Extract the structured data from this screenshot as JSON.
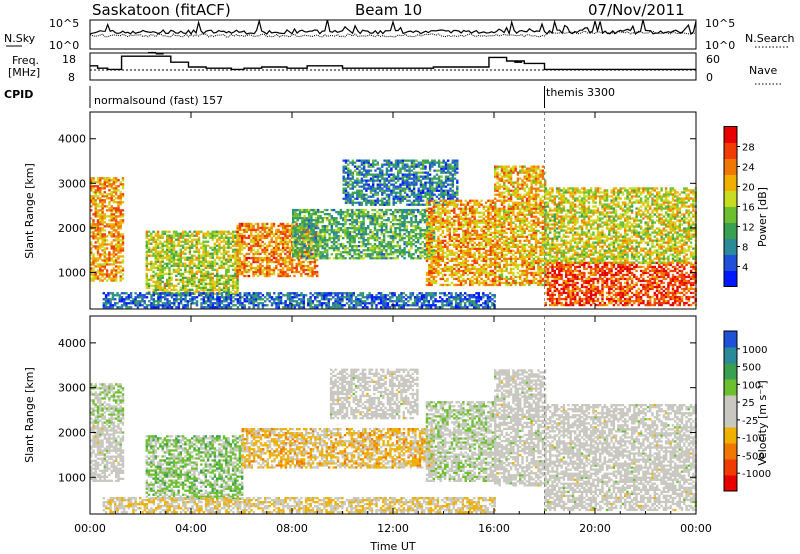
{
  "header": {
    "station": "Saskatoon (fitACF)",
    "beam": "Beam 10",
    "date": "07/Nov/2011"
  },
  "noise_panel": {
    "left_label": "N.Sky",
    "right_label": "N.Search",
    "left_ticks": [
      "10^5",
      "10^0"
    ],
    "right_ticks": [
      "10^5",
      "10^0"
    ]
  },
  "freq_panel": {
    "left_label_top": "Freq.",
    "left_label_bottom": "[MHz]",
    "right_label": "Nave",
    "left_ticks": [
      18,
      8
    ],
    "right_ticks": [
      60,
      0
    ],
    "freq_steps": [
      {
        "t": 0.0,
        "v": 13.5
      },
      {
        "t": 0.3,
        "v": 12.5
      },
      {
        "t": 0.7,
        "v": 12.0
      },
      {
        "t": 1.25,
        "v": 17.5
      },
      {
        "t": 3.2,
        "v": 15.0
      },
      {
        "t": 3.9,
        "v": 13.0
      },
      {
        "t": 4.6,
        "v": 12.5
      },
      {
        "t": 5.6,
        "v": 12.0
      },
      {
        "t": 6.1,
        "v": 12.5
      },
      {
        "t": 6.8,
        "v": 13.0
      },
      {
        "t": 7.8,
        "v": 12.5
      },
      {
        "t": 8.6,
        "v": 13.5
      },
      {
        "t": 10.0,
        "v": 12.5
      },
      {
        "t": 12.0,
        "v": 12.5
      },
      {
        "t": 13.6,
        "v": 13.0
      },
      {
        "t": 15.8,
        "v": 17.0
      },
      {
        "t": 16.5,
        "v": 15.5
      },
      {
        "t": 17.2,
        "v": 14.5
      },
      {
        "t": 18.0,
        "v": 12.0
      },
      {
        "t": 24.0,
        "v": 12.0
      }
    ],
    "freq_spikes": [
      {
        "t": 2.3,
        "v": 19.0
      },
      {
        "t": 2.6,
        "v": 18.5
      },
      {
        "t": 16.8,
        "v": 15.0
      }
    ],
    "nave_level": 30
  },
  "cpid": {
    "label": "CPID",
    "segments": [
      {
        "start": 0,
        "end": 18,
        "text": "normalsound (fast) 157"
      },
      {
        "start": 18,
        "end": 24,
        "text": "themis 3300"
      }
    ]
  },
  "chart_data": [
    {
      "type": "heatmap",
      "name": "power",
      "ylabel": "Slant Range [km]",
      "xlabel": "",
      "x_range_hours": [
        0,
        24
      ],
      "ylim": [
        180,
        4600
      ],
      "yticks": [
        1000,
        2000,
        3000,
        4000
      ],
      "colorbar_label": "Power [dB]",
      "colorbar_ticks": [
        "28",
        "24",
        "20",
        "16",
        "12",
        "8",
        "4"
      ],
      "colorbar_min": 0,
      "colorbar_max": 32,
      "colormap": [
        "#0018ff",
        "#2050d8",
        "#2a8a9a",
        "#38a050",
        "#6cc030",
        "#c8dc20",
        "#f0b000",
        "#f07800",
        "#f03c00",
        "#e80000"
      ],
      "regions": [
        {
          "t0": 0.0,
          "t1": 1.3,
          "r0": 800,
          "r1": 3100,
          "val": 22
        },
        {
          "t0": 2.2,
          "t1": 5.8,
          "r0": 500,
          "r1": 1900,
          "val": 17
        },
        {
          "t0": 5.8,
          "t1": 9.0,
          "r0": 900,
          "r1": 2100,
          "val": 23
        },
        {
          "t0": 8.0,
          "t1": 13.6,
          "r0": 1300,
          "r1": 2400,
          "val": 12
        },
        {
          "t0": 10.0,
          "t1": 14.5,
          "r0": 2500,
          "r1": 3500,
          "val": 8
        },
        {
          "t0": 13.3,
          "t1": 16.0,
          "r0": 700,
          "r1": 2600,
          "val": 22
        },
        {
          "t0": 16.0,
          "t1": 18.0,
          "r0": 700,
          "r1": 3400,
          "val": 21
        },
        {
          "t0": 18.0,
          "t1": 24.0,
          "r0": 250,
          "r1": 1200,
          "val": 27
        },
        {
          "t0": 18.0,
          "t1": 24.0,
          "r0": 1200,
          "r1": 2900,
          "val": 18
        },
        {
          "t0": 0.5,
          "t1": 16.0,
          "r0": 200,
          "r1": 550,
          "val": 6
        }
      ]
    },
    {
      "type": "heatmap",
      "name": "velocity",
      "ylabel": "Slant Range [km]",
      "xlabel": "Time UT",
      "x_range_hours": [
        0,
        24
      ],
      "ylim": [
        180,
        4600
      ],
      "yticks": [
        1000,
        2000,
        3000,
        4000
      ],
      "xtick_labels": [
        "00:00",
        "04:00",
        "08:00",
        "12:00",
        "16:00",
        "20:00",
        "00:00"
      ],
      "colorbar_label": "Velocity [m s⁻¹]",
      "colorbar_ticks": [
        "1000",
        "500",
        "100",
        "25",
        "-25",
        "-100",
        "-500",
        "-1000"
      ],
      "colorbar_min": -1200,
      "colorbar_max": 1200,
      "colormap": [
        "#e80000",
        "#f03c00",
        "#f07800",
        "#f0b000",
        "#c8c8c0",
        "#c8c8c0",
        "#6cc030",
        "#38a050",
        "#2a8a9a",
        "#2050d8"
      ],
      "regions": [
        {
          "t0": 0.0,
          "t1": 1.3,
          "r0": 2200,
          "r1": 3100,
          "val": 200
        },
        {
          "t0": 0.0,
          "t1": 1.3,
          "r0": 900,
          "r1": 2200,
          "val": 0
        },
        {
          "t0": 2.2,
          "t1": 6.0,
          "r0": 500,
          "r1": 1900,
          "val": 300
        },
        {
          "t0": 6.0,
          "t1": 13.6,
          "r0": 1200,
          "r1": 2100,
          "val": -300
        },
        {
          "t0": 9.5,
          "t1": 13.0,
          "r0": 2300,
          "r1": 3400,
          "val": 0
        },
        {
          "t0": 13.3,
          "t1": 16.0,
          "r0": 900,
          "r1": 2700,
          "val": 150
        },
        {
          "t0": 16.0,
          "t1": 18.0,
          "r0": 800,
          "r1": 3400,
          "val": 0
        },
        {
          "t0": 18.0,
          "t1": 24.0,
          "r0": 250,
          "r1": 2600,
          "val": 0
        },
        {
          "t0": 0.5,
          "t1": 16.0,
          "r0": 200,
          "r1": 550,
          "val": -200
        }
      ]
    }
  ]
}
